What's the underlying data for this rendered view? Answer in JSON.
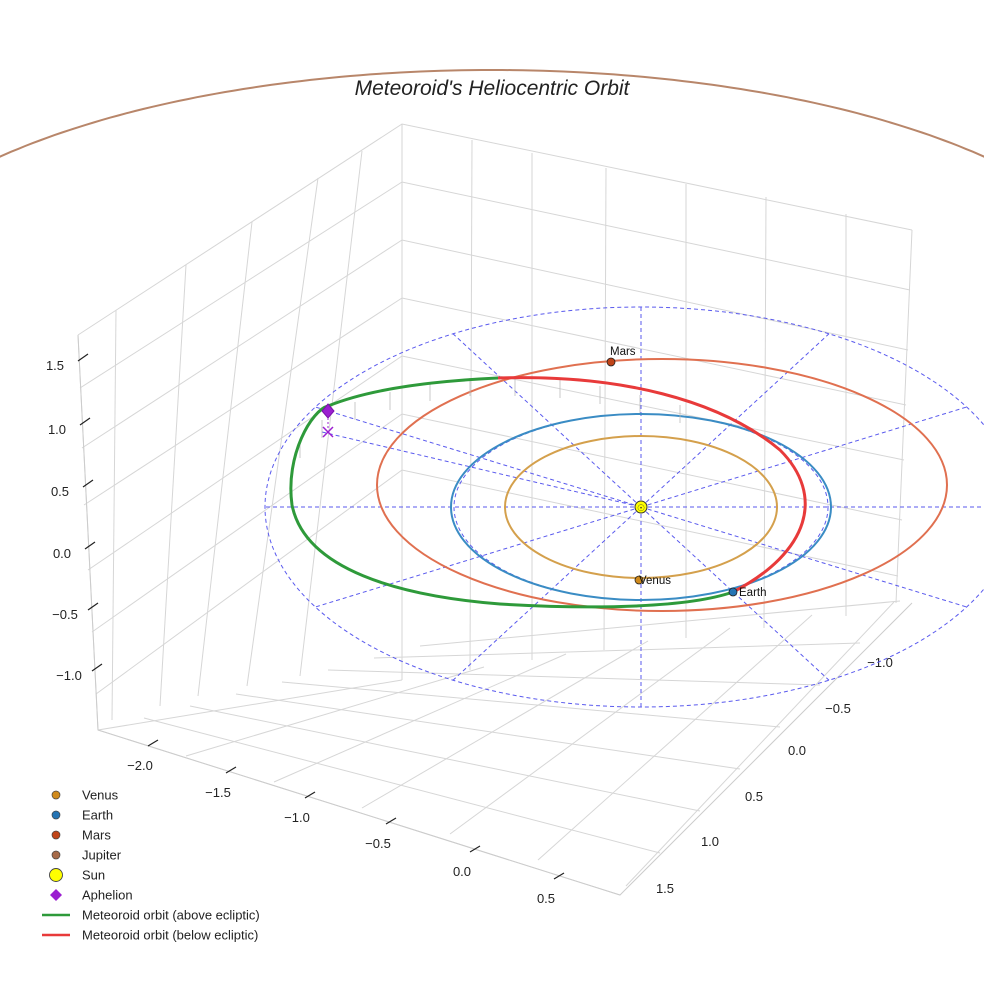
{
  "chart_data": {
    "type": "line3d",
    "title": "Meteoroid's Heliocentric Orbit",
    "x_ticks": [
      "−2.0",
      "−1.5",
      "−1.0",
      "−0.5",
      "0.0",
      "0.5"
    ],
    "y_ticks": [
      "−1.0",
      "−0.5",
      "0.0",
      "0.5",
      "1.0",
      "1.5"
    ],
    "z_ticks": [
      "1.5",
      "1.0",
      "0.5",
      "0.0",
      "−0.5",
      "−1.0"
    ],
    "xlim": [
      -2.3,
      0.8
    ],
    "ylim": [
      -1.3,
      1.8
    ],
    "zlim": [
      -1.3,
      1.8
    ],
    "grid": true,
    "legend_placement": "bottom-left",
    "planet_orbits": [
      {
        "name": "Venus",
        "radius_au": 0.72,
        "color": "#d4a04c"
      },
      {
        "name": "Earth",
        "radius_au": 1.0,
        "color": "#3a8cc4"
      },
      {
        "name": "Mars",
        "radius_au": 1.52,
        "color": "#e07050"
      },
      {
        "name": "Jupiter",
        "radius_au": 5.2,
        "color": "#b8866a"
      }
    ],
    "planet_labels": [
      {
        "name": "Mars",
        "label": "Mars",
        "color": "#c04418"
      },
      {
        "name": "Venus",
        "label": "Venus",
        "color": "#d08a1c"
      },
      {
        "name": "Earth",
        "label": "Earth",
        "color": "#2474b4"
      }
    ],
    "meteoroid_orbit": {
      "segments": [
        {
          "name": "Meteoroid orbit (above ecliptic)",
          "color": "#2e9a3a"
        },
        {
          "name": "Meteoroid orbit (below ecliptic)",
          "color": "#e83a3a"
        }
      ]
    },
    "legend": [
      {
        "label": "Venus",
        "marker": "circle",
        "color": "#d08a1c"
      },
      {
        "label": "Earth",
        "marker": "circle",
        "color": "#2474b4"
      },
      {
        "label": "Mars",
        "marker": "circle",
        "color": "#c04418"
      },
      {
        "label": "Jupiter",
        "marker": "circle",
        "color": "#a66a48"
      },
      {
        "label": "Sun",
        "marker": "circle-lg",
        "color": "#ffff00"
      },
      {
        "label": "Aphelion",
        "marker": "diamond",
        "color": "#9b1fd0"
      },
      {
        "label": "Meteoroid orbit (above ecliptic)",
        "marker": "line",
        "color": "#2e9a3a"
      },
      {
        "label": "Meteoroid orbit (below ecliptic)",
        "marker": "line",
        "color": "#e83a3a"
      }
    ]
  }
}
